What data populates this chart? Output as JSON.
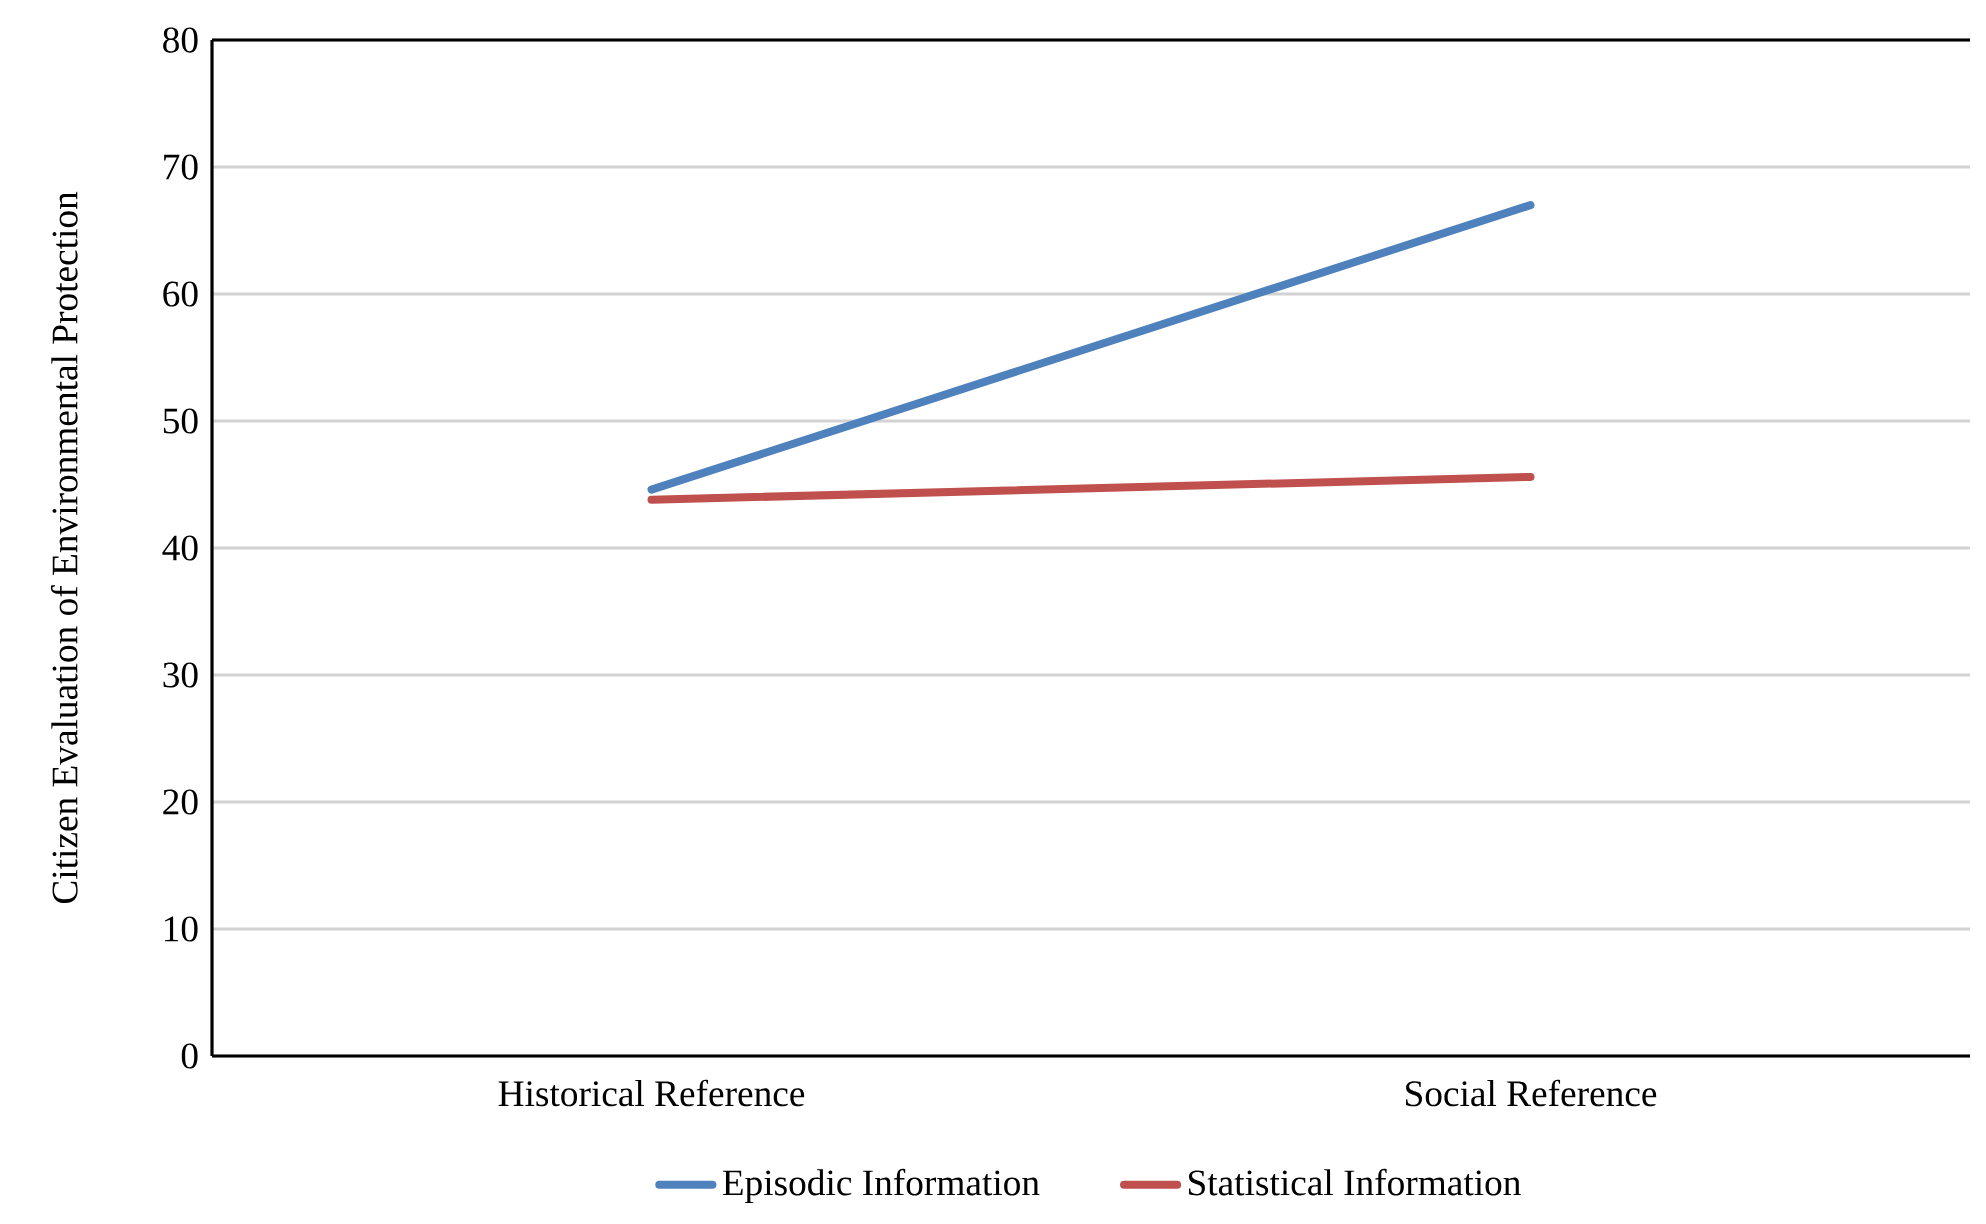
{
  "chart_data": {
    "type": "line",
    "ylabel": "Citizen Evaluation of Environmental Protection",
    "categories": [
      "Historical Reference",
      "Social Reference"
    ],
    "series": [
      {
        "name": "Episodic Information",
        "color": "#4f81bd",
        "values": [
          44.6,
          67
        ]
      },
      {
        "name": "Statistical Information",
        "color": "#c0504d",
        "values": [
          43.8,
          45.6
        ]
      }
    ],
    "ylim": [
      0,
      80
    ],
    "yticks": [
      0,
      10,
      20,
      30,
      40,
      50,
      60,
      70,
      80
    ],
    "grid": "y",
    "legend": "bottom",
    "marker": "none",
    "line_style": "solid"
  }
}
